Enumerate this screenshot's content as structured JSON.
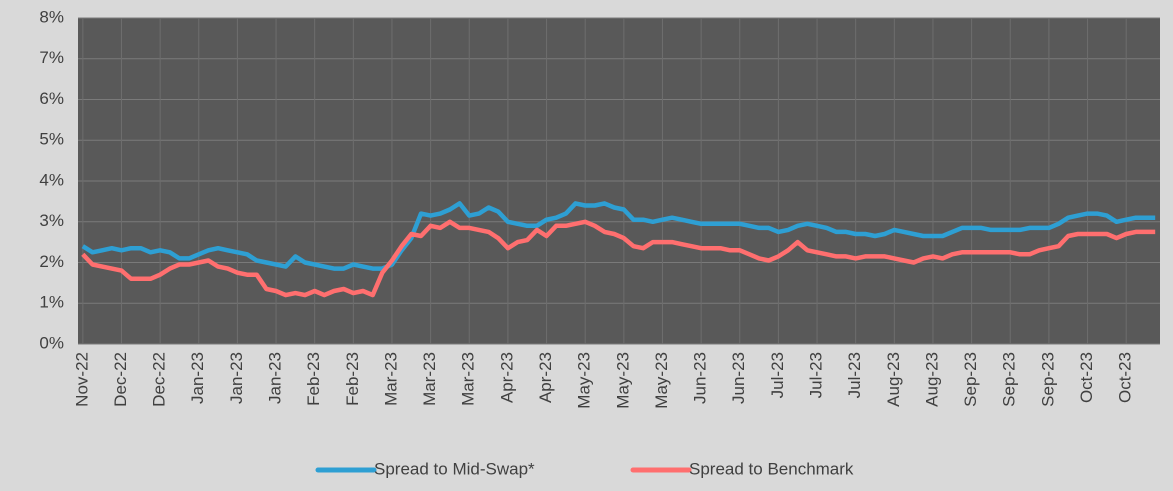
{
  "chart_data": {
    "type": "line",
    "categories": [
      "Nov-22",
      null,
      null,
      null,
      "Dec-22",
      null,
      null,
      null,
      "Dec-22",
      null,
      null,
      null,
      "Jan-23",
      null,
      null,
      null,
      "Jan-23",
      null,
      null,
      null,
      "Jan-23",
      null,
      null,
      null,
      "Feb-23",
      null,
      null,
      null,
      "Feb-23",
      null,
      null,
      null,
      "Mar-23",
      null,
      null,
      null,
      "Mar-23",
      null,
      null,
      null,
      "Mar-23",
      null,
      null,
      null,
      "Apr-23",
      null,
      null,
      null,
      "Apr-23",
      null,
      null,
      null,
      "May-23",
      null,
      null,
      null,
      "May-23",
      null,
      null,
      null,
      "May-23",
      null,
      null,
      null,
      "Jun-23",
      null,
      null,
      null,
      "Jun-23",
      null,
      null,
      null,
      "Jul-23",
      null,
      null,
      null,
      "Jul-23",
      null,
      null,
      null,
      "Jul-23",
      null,
      null,
      null,
      "Aug-23",
      null,
      null,
      null,
      "Aug-23",
      null,
      null,
      null,
      "Sep-23",
      null,
      null,
      null,
      "Sep-23",
      null,
      null,
      null,
      "Sep-23",
      null,
      null,
      null,
      "Oct-23",
      null,
      null,
      null,
      "Oct-23",
      null,
      null,
      null
    ],
    "series": [
      {
        "name": "Spread to Mid-Swap*",
        "color": "#2e9fd3",
        "values": [
          2.4,
          2.25,
          2.3,
          2.35,
          2.3,
          2.35,
          2.35,
          2.25,
          2.3,
          2.25,
          2.1,
          2.1,
          2.2,
          2.3,
          2.35,
          2.3,
          2.25,
          2.2,
          2.05,
          2.0,
          1.95,
          1.9,
          2.15,
          2.0,
          1.95,
          1.9,
          1.85,
          1.85,
          1.95,
          1.9,
          1.85,
          1.85,
          1.95,
          2.3,
          2.6,
          3.2,
          3.15,
          3.2,
          3.3,
          3.45,
          3.15,
          3.2,
          3.35,
          3.25,
          3.0,
          2.95,
          2.9,
          2.9,
          3.05,
          3.1,
          3.2,
          3.45,
          3.4,
          3.4,
          3.45,
          3.35,
          3.3,
          3.05,
          3.05,
          3.0,
          3.05,
          3.1,
          3.05,
          3.0,
          2.95,
          2.95,
          2.95,
          2.95,
          2.95,
          2.9,
          2.85,
          2.85,
          2.75,
          2.8,
          2.9,
          2.95,
          2.9,
          2.85,
          2.75,
          2.75,
          2.7,
          2.7,
          2.65,
          2.7,
          2.8,
          2.75,
          2.7,
          2.65,
          2.65,
          2.65,
          2.75,
          2.85,
          2.85,
          2.85,
          2.8,
          2.8,
          2.8,
          2.8,
          2.85,
          2.85,
          2.85,
          2.95,
          3.1,
          3.15,
          3.2,
          3.2,
          3.15,
          3.0,
          3.05,
          3.1,
          3.1,
          3.1
        ]
      },
      {
        "name": "Spread to Benchmark",
        "color": "#ff6f6f",
        "values": [
          2.2,
          1.95,
          1.9,
          1.85,
          1.8,
          1.6,
          1.6,
          1.6,
          1.7,
          1.85,
          1.95,
          1.95,
          2.0,
          2.05,
          1.9,
          1.85,
          1.75,
          1.7,
          1.7,
          1.35,
          1.3,
          1.2,
          1.25,
          1.2,
          1.3,
          1.2,
          1.3,
          1.35,
          1.25,
          1.3,
          1.2,
          1.75,
          2.05,
          2.4,
          2.7,
          2.65,
          2.9,
          2.85,
          3.0,
          2.85,
          2.85,
          2.8,
          2.75,
          2.6,
          2.35,
          2.5,
          2.55,
          2.8,
          2.65,
          2.9,
          2.9,
          2.95,
          3.0,
          2.9,
          2.75,
          2.7,
          2.6,
          2.4,
          2.35,
          2.5,
          2.5,
          2.5,
          2.45,
          2.4,
          2.35,
          2.35,
          2.35,
          2.3,
          2.3,
          2.2,
          2.1,
          2.05,
          2.15,
          2.3,
          2.5,
          2.3,
          2.25,
          2.2,
          2.15,
          2.15,
          2.1,
          2.15,
          2.15,
          2.15,
          2.1,
          2.05,
          2.0,
          2.1,
          2.15,
          2.1,
          2.2,
          2.25,
          2.25,
          2.25,
          2.25,
          2.25,
          2.25,
          2.2,
          2.2,
          2.3,
          2.35,
          2.4,
          2.65,
          2.7,
          2.7,
          2.7,
          2.7,
          2.6,
          2.7,
          2.75,
          2.75,
          2.75
        ]
      }
    ],
    "ylim": [
      0,
      8
    ],
    "yticks": [
      {
        "value": 0,
        "label": "0%"
      },
      {
        "value": 1,
        "label": "1%"
      },
      {
        "value": 2,
        "label": "2%"
      },
      {
        "value": 3,
        "label": "3%"
      },
      {
        "value": 4,
        "label": "4%"
      },
      {
        "value": 5,
        "label": "5%"
      },
      {
        "value": 6,
        "label": "6%"
      },
      {
        "value": 7,
        "label": "7%"
      },
      {
        "value": 8,
        "label": "8%"
      }
    ],
    "grid": true,
    "legend": "bottom"
  }
}
